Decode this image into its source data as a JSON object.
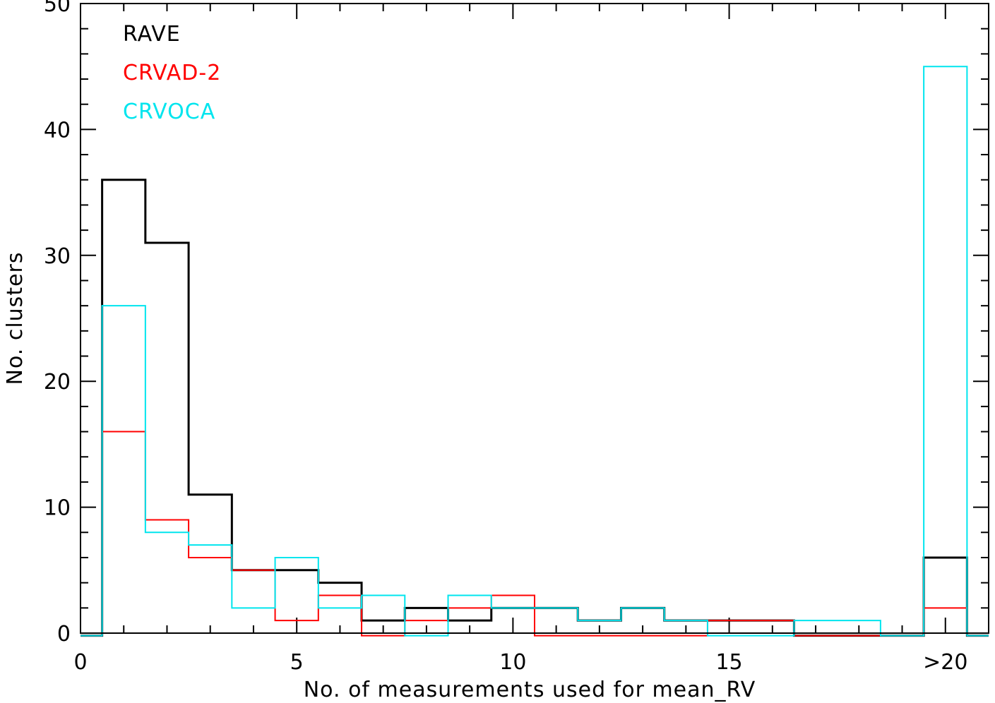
{
  "chart_data": {
    "type": "line",
    "title": "",
    "xlabel": "No. of measurements used for mean_RV",
    "ylabel": "No. clusters",
    "xlim": [
      0,
      21
    ],
    "ylim": [
      0,
      50
    ],
    "x_ticks": [
      {
        "value": 0,
        "label": "0"
      },
      {
        "value": 5,
        "label": "5"
      },
      {
        "value": 10,
        "label": "10"
      },
      {
        "value": 15,
        "label": "15"
      },
      {
        "value": 20,
        "label": ">20"
      }
    ],
    "y_ticks": [
      {
        "value": 0,
        "label": "0"
      },
      {
        "value": 10,
        "label": "10"
      },
      {
        "value": 20,
        "label": "20"
      },
      {
        "value": 30,
        "label": "30"
      },
      {
        "value": 40,
        "label": "40"
      },
      {
        "value": 50,
        "label": "50"
      }
    ],
    "x": [
      1,
      2,
      3,
      4,
      5,
      6,
      7,
      8,
      9,
      10,
      11,
      12,
      13,
      14,
      15,
      16,
      17,
      18,
      19,
      20
    ],
    "series": [
      {
        "name": "RAVE",
        "color": "#000000",
        "values": [
          36,
          31,
          11,
          5,
          5,
          4,
          1,
          2,
          1,
          2,
          2,
          1,
          2,
          1,
          1,
          1,
          0,
          0,
          0,
          6
        ]
      },
      {
        "name": "CRVAD-2",
        "color": "#ff0000",
        "values": [
          16,
          9,
          6,
          5,
          1,
          3,
          0,
          1,
          2,
          3,
          0,
          0,
          0,
          0,
          1,
          1,
          0,
          0,
          0,
          2
        ]
      },
      {
        "name": "CRVOCA",
        "color": "#00e5ee",
        "values": [
          26,
          8,
          7,
          2,
          6,
          2,
          3,
          0,
          3,
          2,
          2,
          1,
          2,
          1,
          0,
          0,
          1,
          1,
          0,
          45
        ]
      }
    ],
    "grid": false,
    "legend_position": "top-left"
  }
}
